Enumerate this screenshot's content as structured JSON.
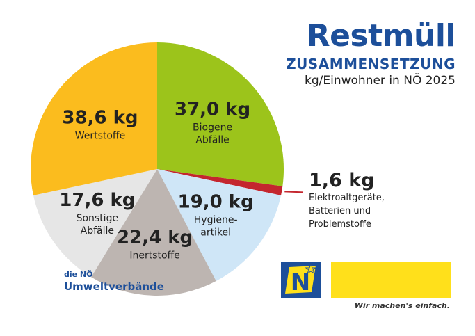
{
  "title": {
    "main": "Restmüll",
    "sub": "ZUSAMMENSETZUNG",
    "unit": "kg/Einwohner in NÖ 2025"
  },
  "logo": {
    "letter": "N",
    "line1": "die NÖ",
    "line2": "Umweltverbände",
    "slogan": "Wir machen's einfach."
  },
  "colors": {
    "brand_blue": "#1d4f9a",
    "brand_yellow": "#ffe01b"
  },
  "chart_data": {
    "type": "pie",
    "start_angle_deg": 0,
    "direction": "clockwise",
    "slices": [
      {
        "value": 37.0,
        "value_label": "37,0 kg",
        "label_lines": [
          "Biogene",
          "Abfälle"
        ],
        "color": "#9cc41b"
      },
      {
        "value": 1.6,
        "value_label": "1,6 kg",
        "label_lines": [
          "Elektroaltgeräte,",
          "Batterien und",
          "Problemstoffe"
        ],
        "color": "#c4262e",
        "callout": true
      },
      {
        "value": 19.0,
        "value_label": "19,0 kg",
        "label_lines": [
          "Hygiene-",
          "artikel"
        ],
        "color": "#cfe6f7"
      },
      {
        "value": 22.4,
        "value_label": "22,4 kg",
        "label_lines": [
          "Inertstoffe"
        ],
        "color": "#bdb5b1"
      },
      {
        "value": 17.6,
        "value_label": "17,6 kg",
        "label_lines": [
          "Sonstige",
          "Abfälle"
        ],
        "color": "#e6e6e6"
      },
      {
        "value": 38.6,
        "value_label": "38,6 kg",
        "label_lines": [
          "Wertstoffe"
        ],
        "color": "#fbbc1e"
      }
    ]
  }
}
